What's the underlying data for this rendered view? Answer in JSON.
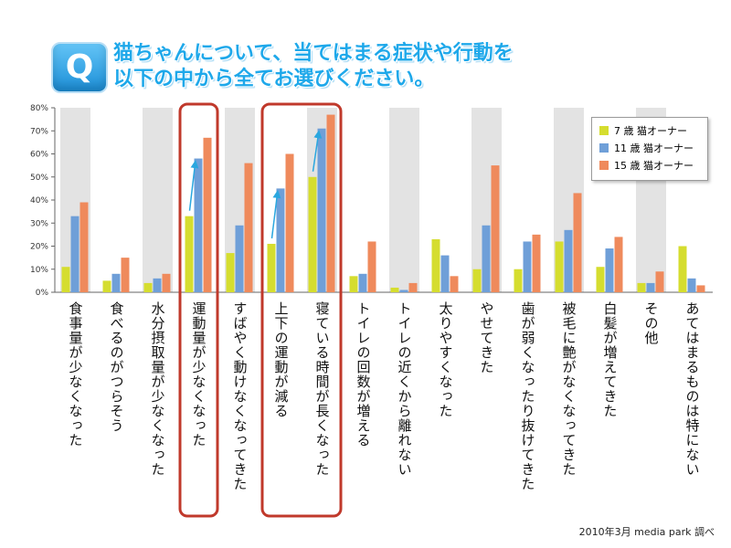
{
  "header": {
    "badge_letter": "Q",
    "title_line1": "猫ちゃんについて、当てはまる症状や行動を",
    "title_line2": "以下の中から全てお選びください。"
  },
  "source_note": "2010年3月 media park 調べ",
  "colors": {
    "series_7": "#d5dd2f",
    "series_11": "#6f9fd8",
    "series_15": "#ef8a5c",
    "band": "#e3e3e3",
    "highlight_box": "#c0392b",
    "arrow": "#2aa7df"
  },
  "chart_data": {
    "type": "bar",
    "ylim": [
      0,
      80
    ],
    "yticks": [
      "0%",
      "10%",
      "20%",
      "30%",
      "40%",
      "50%",
      "60%",
      "70%",
      "80%"
    ],
    "grid": false,
    "legend_position": "top-right",
    "categories": [
      "食事量が少なくなった",
      "食べるのがつらそう",
      "水分摂取量が少なくなった",
      "運動量が少なくなった",
      "すばやく動けなくなってきた",
      "上下の運動が減る",
      "寝ている時間が長くなった",
      "トイレの回数が増える",
      "トイレの近くから離れない",
      "太りやすくなった",
      "やせてきた",
      "歯が弱くなったり抜けてきた",
      "被毛に艶がなくなってきた",
      "白髪が増えてきた",
      "その他",
      "あてはまるものは特にない"
    ],
    "series": [
      {
        "name": "7 歳 猫オーナー",
        "values": [
          11,
          5,
          4,
          33,
          17,
          21,
          50,
          7,
          2,
          23,
          10,
          10,
          22,
          11,
          4,
          20
        ]
      },
      {
        "name": "11 歳 猫オーナー",
        "values": [
          33,
          8,
          6,
          58,
          29,
          45,
          71,
          8,
          1,
          16,
          29,
          22,
          27,
          19,
          4,
          6
        ]
      },
      {
        "name": "15 歳 猫オーナー",
        "values": [
          39,
          15,
          8,
          67,
          56,
          60,
          77,
          22,
          4,
          7,
          55,
          25,
          43,
          24,
          9,
          3
        ]
      }
    ],
    "highlighted_categories": [
      3,
      5,
      6
    ],
    "trend_arrows": [
      3,
      5,
      6
    ]
  }
}
